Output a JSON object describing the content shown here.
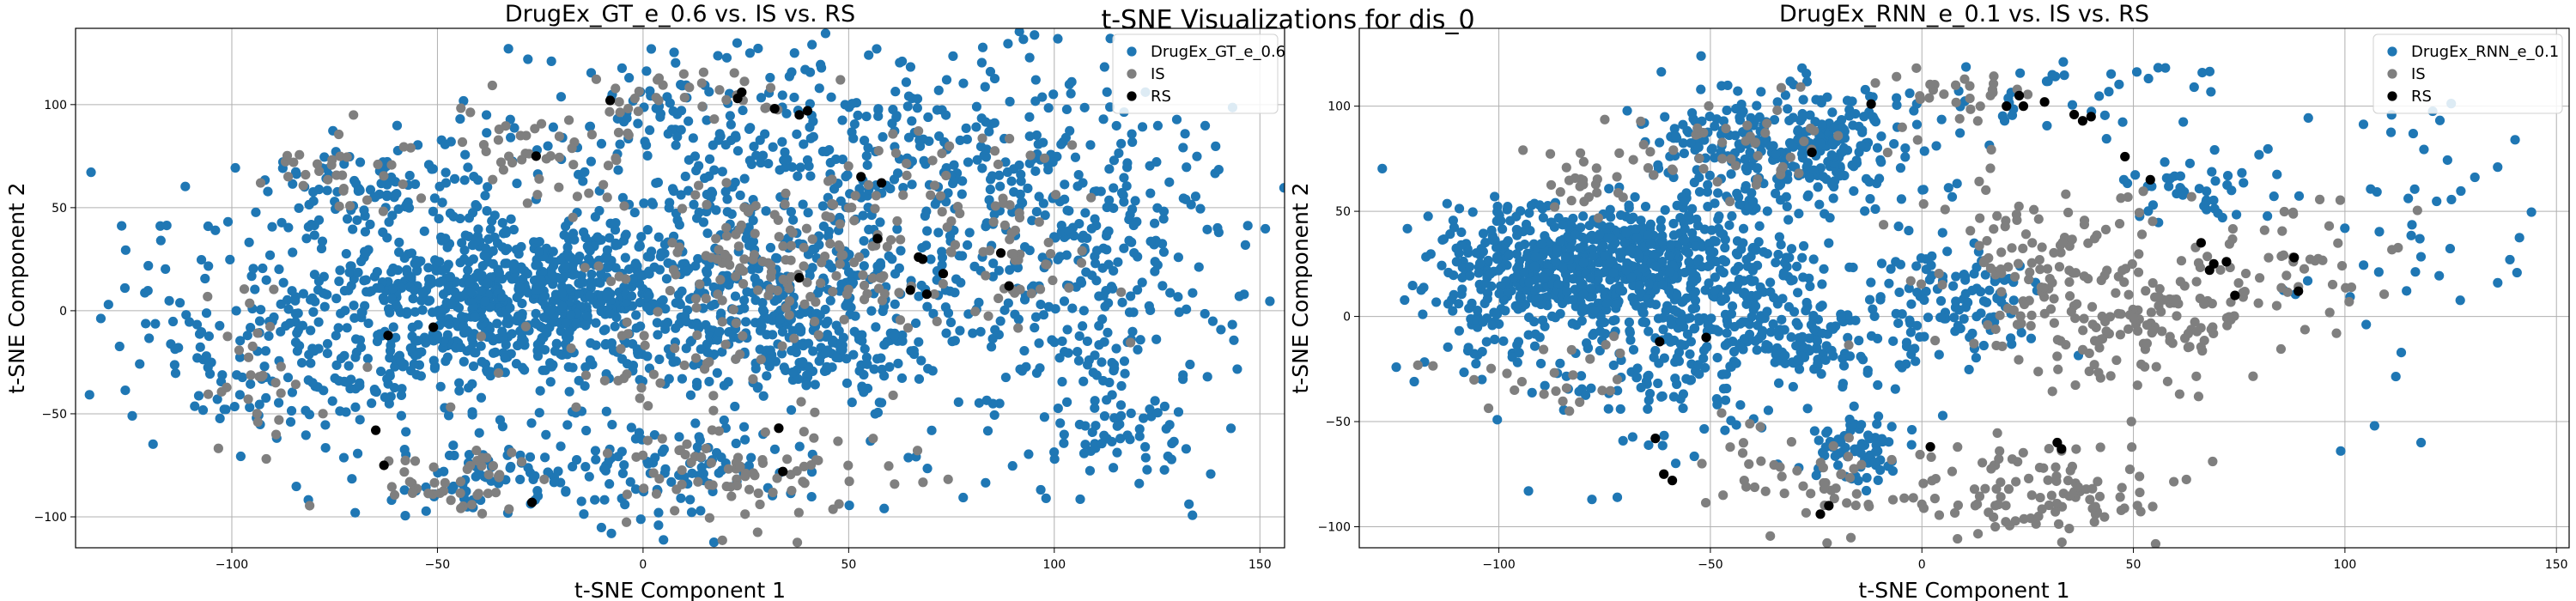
{
  "figure": {
    "suptitle": "t-SNE Visualizations for dis_0"
  },
  "colors": {
    "generated": "#1f77b4",
    "IS": "#7f7f7f",
    "RS": "#000000",
    "grid": "#b0b0b0"
  },
  "chart_data": [
    {
      "type": "scatter",
      "title": "DrugEx_GT_e_0.6 vs. IS vs. RS",
      "xlabel": "t-SNE Component 1",
      "ylabel": "t-SNE Component 2",
      "xlim": [
        -138,
        156
      ],
      "ylim": [
        -115,
        137
      ],
      "xticks": [
        -100,
        -50,
        0,
        50,
        100,
        150
      ],
      "yticks": [
        -100,
        -50,
        0,
        50,
        100
      ],
      "grid": true,
      "legend_loc": "upper right",
      "series": [
        {
          "name": "DrugEx_GT_e_0.6",
          "color": "#1f77b4",
          "clusters": [
            {
              "cx": -30,
              "cy": 5,
              "sx": 22,
              "sy": 20,
              "n": 700
            },
            {
              "cx": -75,
              "cy": -10,
              "sx": 22,
              "sy": 30,
              "n": 260
            },
            {
              "cx": -65,
              "cy": 60,
              "sx": 15,
              "sy": 12,
              "n": 90
            },
            {
              "cx": 30,
              "cy": 15,
              "sx": 25,
              "sy": 20,
              "n": 330
            },
            {
              "cx": 40,
              "cy": -20,
              "sx": 20,
              "sy": 12,
              "n": 160
            },
            {
              "cx": 10,
              "cy": 80,
              "sx": 25,
              "sy": 25,
              "n": 180
            },
            {
              "cx": 60,
              "cy": 80,
              "sx": 20,
              "sy": 25,
              "n": 160
            },
            {
              "cx": 105,
              "cy": 25,
              "sx": 20,
              "sy": 50,
              "n": 360
            },
            {
              "cx": 115,
              "cy": -45,
              "sx": 12,
              "sy": 20,
              "n": 70
            },
            {
              "cx": 0,
              "cy": -75,
              "sx": 25,
              "sy": 15,
              "n": 140
            },
            {
              "cx": -40,
              "cy": -85,
              "sx": 12,
              "sy": 10,
              "n": 50
            },
            {
              "cx": -105,
              "cy": -15,
              "sx": 12,
              "sy": 30,
              "n": 40
            }
          ],
          "points": [
            [
              -130,
              3
            ],
            [
              -126,
              11
            ],
            [
              -104,
              39
            ],
            [
              -95,
              1
            ],
            [
              63,
              121
            ],
            [
              2,
              127
            ],
            [
              26,
              125
            ],
            [
              -28,
              122
            ],
            [
              145,
              7
            ],
            [
              140,
              38
            ],
            [
              98,
              -91
            ],
            [
              -70,
              -98
            ]
          ]
        },
        {
          "name": "IS",
          "color": "#7f7f7f",
          "clusters": [
            {
              "cx": -20,
              "cy": 80,
              "sx": 15,
              "sy": 15,
              "n": 50
            },
            {
              "cx": 10,
              "cy": 105,
              "sx": 12,
              "sy": 6,
              "n": 25
            },
            {
              "cx": 35,
              "cy": 20,
              "sx": 20,
              "sy": 20,
              "n": 150
            },
            {
              "cx": 25,
              "cy": -80,
              "sx": 20,
              "sy": 12,
              "n": 80
            },
            {
              "cx": -45,
              "cy": -82,
              "sx": 12,
              "sy": 8,
              "n": 45
            },
            {
              "cx": -75,
              "cy": 65,
              "sx": 12,
              "sy": 10,
              "n": 30
            },
            {
              "cx": -95,
              "cy": -30,
              "sx": 10,
              "sy": 25,
              "n": 30
            },
            {
              "cx": 75,
              "cy": 55,
              "sx": 15,
              "sy": 15,
              "n": 45
            },
            {
              "cx": 95,
              "cy": 20,
              "sx": 10,
              "sy": 15,
              "n": 30
            },
            {
              "cx": 5,
              "cy": -30,
              "sx": 20,
              "sy": 20,
              "n": 40
            }
          ],
          "points": [
            [
              -85,
              72
            ],
            [
              -93,
              62
            ],
            [
              -35,
              88
            ],
            [
              48,
              112
            ],
            [
              -2,
              103
            ]
          ]
        },
        {
          "name": "RS",
          "color": "#000000",
          "clusters": [],
          "points": [
            [
              -62,
              -12
            ],
            [
              -51,
              -8
            ],
            [
              -65,
              -58
            ],
            [
              -63,
              -75
            ],
            [
              -27,
              -93
            ],
            [
              -26,
              75
            ],
            [
              -8,
              102
            ],
            [
              23,
              103
            ],
            [
              24,
              106
            ],
            [
              32,
              98
            ],
            [
              38,
              95
            ],
            [
              40,
              97
            ],
            [
              53,
              65
            ],
            [
              58,
              62
            ],
            [
              57,
              35
            ],
            [
              65,
              10
            ],
            [
              67,
              26
            ],
            [
              69,
              8
            ],
            [
              68,
              25
            ],
            [
              73,
              18
            ],
            [
              87,
              28
            ],
            [
              89,
              12
            ],
            [
              33,
              -57
            ],
            [
              34,
              -78
            ],
            [
              38,
              16
            ]
          ]
        }
      ]
    },
    {
      "type": "scatter",
      "title": "DrugEx_RNN_e_0.1 vs. IS vs. RS",
      "xlabel": "t-SNE Component 1",
      "ylabel": "t-SNE Component 2",
      "xlim": [
        -133,
        153
      ],
      "ylim": [
        -110,
        137
      ],
      "xticks": [
        -100,
        -50,
        0,
        50,
        100,
        150
      ],
      "yticks": [
        -100,
        -50,
        0,
        50,
        100
      ],
      "grid": true,
      "legend_loc": "upper right",
      "series": [
        {
          "name": "DrugEx_RNN_e_0.1",
          "color": "#1f77b4",
          "clusters": [
            {
              "cx": -70,
              "cy": 25,
              "sx": 20,
              "sy": 15,
              "n": 700
            },
            {
              "cx": -30,
              "cy": 80,
              "sx": 15,
              "sy": 15,
              "n": 320
            },
            {
              "cx": -40,
              "cy": -10,
              "sx": 25,
              "sy": 15,
              "n": 300
            },
            {
              "cx": -100,
              "cy": 10,
              "sx": 8,
              "sy": 20,
              "n": 100
            },
            {
              "cx": -15,
              "cy": -65,
              "sx": 6,
              "sy": 8,
              "n": 70
            },
            {
              "cx": 10,
              "cy": 10,
              "sx": 10,
              "sy": 12,
              "n": 80
            },
            {
              "cx": 65,
              "cy": 60,
              "sx": 10,
              "sy": 8,
              "n": 45
            },
            {
              "cx": 25,
              "cy": 105,
              "sx": 20,
              "sy": 15,
              "n": 45
            },
            {
              "cx": 115,
              "cy": 40,
              "sx": 15,
              "sy": 30,
              "n": 45
            },
            {
              "cx": -60,
              "cy": -40,
              "sx": 15,
              "sy": 15,
              "n": 50
            }
          ],
          "points": [
            [
              -120,
              -31
            ],
            [
              -118,
              1
            ],
            [
              -110,
              26
            ],
            [
              -101,
              57
            ],
            [
              -93,
              -83
            ],
            [
              -78,
              -87
            ],
            [
              -72,
              -86
            ],
            [
              139,
              27
            ],
            [
              118,
              -60
            ],
            [
              107,
              -52
            ],
            [
              99,
              -64
            ],
            [
              -104,
              -30
            ],
            [
              -112,
              6
            ]
          ]
        },
        {
          "name": "IS",
          "color": "#7f7f7f",
          "clusters": [
            {
              "cx": 20,
              "cy": -85,
              "sx": 20,
              "sy": 12,
              "n": 120
            },
            {
              "cx": 30,
              "cy": 20,
              "sx": 15,
              "sy": 25,
              "n": 150
            },
            {
              "cx": -30,
              "cy": -80,
              "sx": 10,
              "sy": 15,
              "n": 40
            },
            {
              "cx": -40,
              "cy": 80,
              "sx": 12,
              "sy": 12,
              "n": 45
            },
            {
              "cx": -75,
              "cy": 65,
              "sx": 10,
              "sy": 8,
              "n": 30
            },
            {
              "cx": 90,
              "cy": 20,
              "sx": 12,
              "sy": 15,
              "n": 50
            },
            {
              "cx": 60,
              "cy": 0,
              "sx": 15,
              "sy": 15,
              "n": 60
            },
            {
              "cx": 55,
              "cy": -15,
              "sx": 10,
              "sy": 10,
              "n": 30
            },
            {
              "cx": -90,
              "cy": -30,
              "sx": 10,
              "sy": 10,
              "n": 25
            },
            {
              "cx": 10,
              "cy": 105,
              "sx": 10,
              "sy": 6,
              "n": 25
            }
          ],
          "points": [
            [
              -11,
              111
            ],
            [
              -6,
              114
            ],
            [
              -52,
              -70
            ],
            [
              -47,
              -85
            ],
            [
              -42,
              -78
            ],
            [
              101,
              7
            ],
            [
              98,
              -8
            ]
          ]
        },
        {
          "name": "RS",
          "color": "#000000",
          "clusters": [],
          "points": [
            [
              -62,
              -12
            ],
            [
              -51,
              -10
            ],
            [
              -63,
              -58
            ],
            [
              -61,
              -75
            ],
            [
              -59,
              -78
            ],
            [
              -24,
              -94
            ],
            [
              -22,
              -90
            ],
            [
              -12,
              101
            ],
            [
              20,
              100
            ],
            [
              23,
              105
            ],
            [
              24,
              100
            ],
            [
              29,
              102
            ],
            [
              36,
              96
            ],
            [
              38,
              93
            ],
            [
              40,
              95
            ],
            [
              48,
              76
            ],
            [
              54,
              65
            ],
            [
              66,
              35
            ],
            [
              68,
              22
            ],
            [
              69,
              25
            ],
            [
              72,
              26
            ],
            [
              74,
              10
            ],
            [
              88,
              28
            ],
            [
              89,
              12
            ],
            [
              32,
              -60
            ],
            [
              33,
              -63
            ],
            [
              2,
              -62
            ],
            [
              -26,
              78
            ]
          ]
        }
      ]
    }
  ]
}
